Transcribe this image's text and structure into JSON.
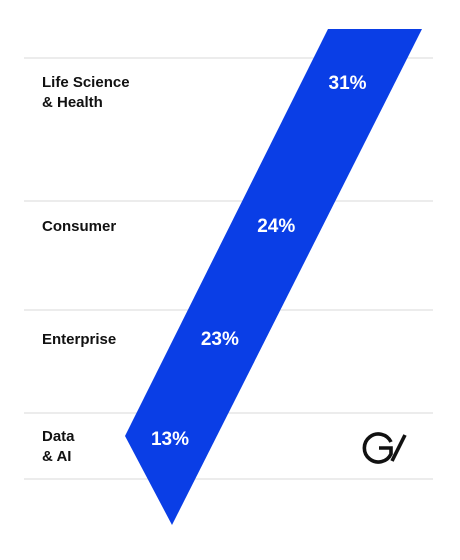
{
  "colors": {
    "band": "#0a3ee6",
    "text": "#111111",
    "value_text": "#ffffff",
    "divider": "#d9d9d9",
    "logo": "#111111"
  },
  "logo": {
    "icon": "gv-logo-icon"
  },
  "chart_data": {
    "type": "bar",
    "title": "",
    "xlabel": "",
    "ylabel": "",
    "categories": [
      {
        "lines": [
          "Life Science",
          "& Health"
        ]
      },
      {
        "lines": [
          "Consumer"
        ]
      },
      {
        "lines": [
          "Enterprise"
        ]
      },
      {
        "lines": [
          "Data",
          "& AI"
        ]
      }
    ],
    "values": [
      31,
      24,
      23,
      13
    ],
    "value_labels": [
      "31%",
      "24%",
      "23%",
      "13%"
    ],
    "unit": "%",
    "grid": false,
    "legend": "none"
  }
}
